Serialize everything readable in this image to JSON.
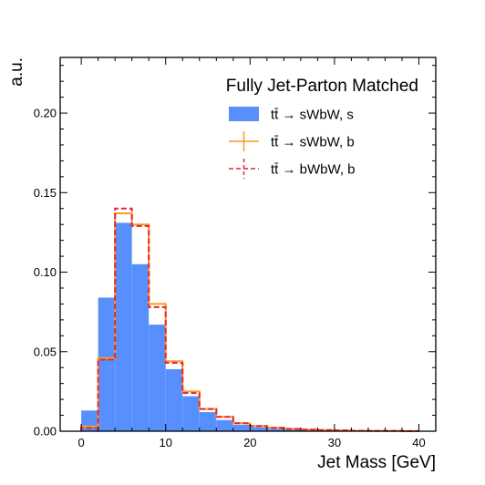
{
  "chart_data": {
    "type": "histogram",
    "title": "",
    "xlabel": "Jet Mass [GeV]",
    "ylabel": "a.u.",
    "xlim": [
      -2.5,
      42
    ],
    "ylim": [
      0,
      0.235
    ],
    "xticks": [
      0,
      10,
      20,
      30,
      40
    ],
    "xtick_labels": [
      "0",
      "10",
      "20",
      "30",
      "40"
    ],
    "yticks": [
      0,
      0.05,
      0.1,
      0.15,
      0.2
    ],
    "ytick_labels": [
      "0.00",
      "0.05",
      "0.10",
      "0.15",
      "0.20"
    ],
    "bin_edges": [
      0,
      2,
      4,
      6,
      8,
      10,
      12,
      14,
      16,
      18,
      20,
      22,
      24,
      26,
      28,
      30,
      32,
      34,
      36,
      38,
      40
    ],
    "legend_title": "Fully Jet-Parton Matched",
    "legend_position": "top-right",
    "series": [
      {
        "name": "tt̄ → sWbW, s",
        "style": "filled",
        "color": "#5790fc",
        "values": [
          0.013,
          0.084,
          0.131,
          0.105,
          0.067,
          0.039,
          0.022,
          0.012,
          0.007,
          0.004,
          0.0025,
          0.0015,
          0.001,
          0.0007,
          0.0005,
          0.0003,
          0.0002,
          0.0002,
          0.0001,
          0.0001
        ]
      },
      {
        "name": "tt̄ → sWbW, b",
        "style": "step-solid",
        "color": "#f89c20",
        "values": [
          0.003,
          0.046,
          0.137,
          0.13,
          0.08,
          0.044,
          0.025,
          0.014,
          0.009,
          0.005,
          0.0033,
          0.0022,
          0.0015,
          0.001,
          0.0007,
          0.0005,
          0.0003,
          0.0002,
          0.0002,
          0.0001
        ]
      },
      {
        "name": "tt̄ → bWbW, b",
        "style": "step-dashed",
        "color": "#e42536",
        "values": [
          0.002,
          0.045,
          0.14,
          0.129,
          0.078,
          0.043,
          0.024,
          0.014,
          0.009,
          0.005,
          0.0032,
          0.0021,
          0.0014,
          0.001,
          0.0007,
          0.0005,
          0.0003,
          0.0002,
          0.0002,
          0.0001
        ]
      }
    ]
  }
}
